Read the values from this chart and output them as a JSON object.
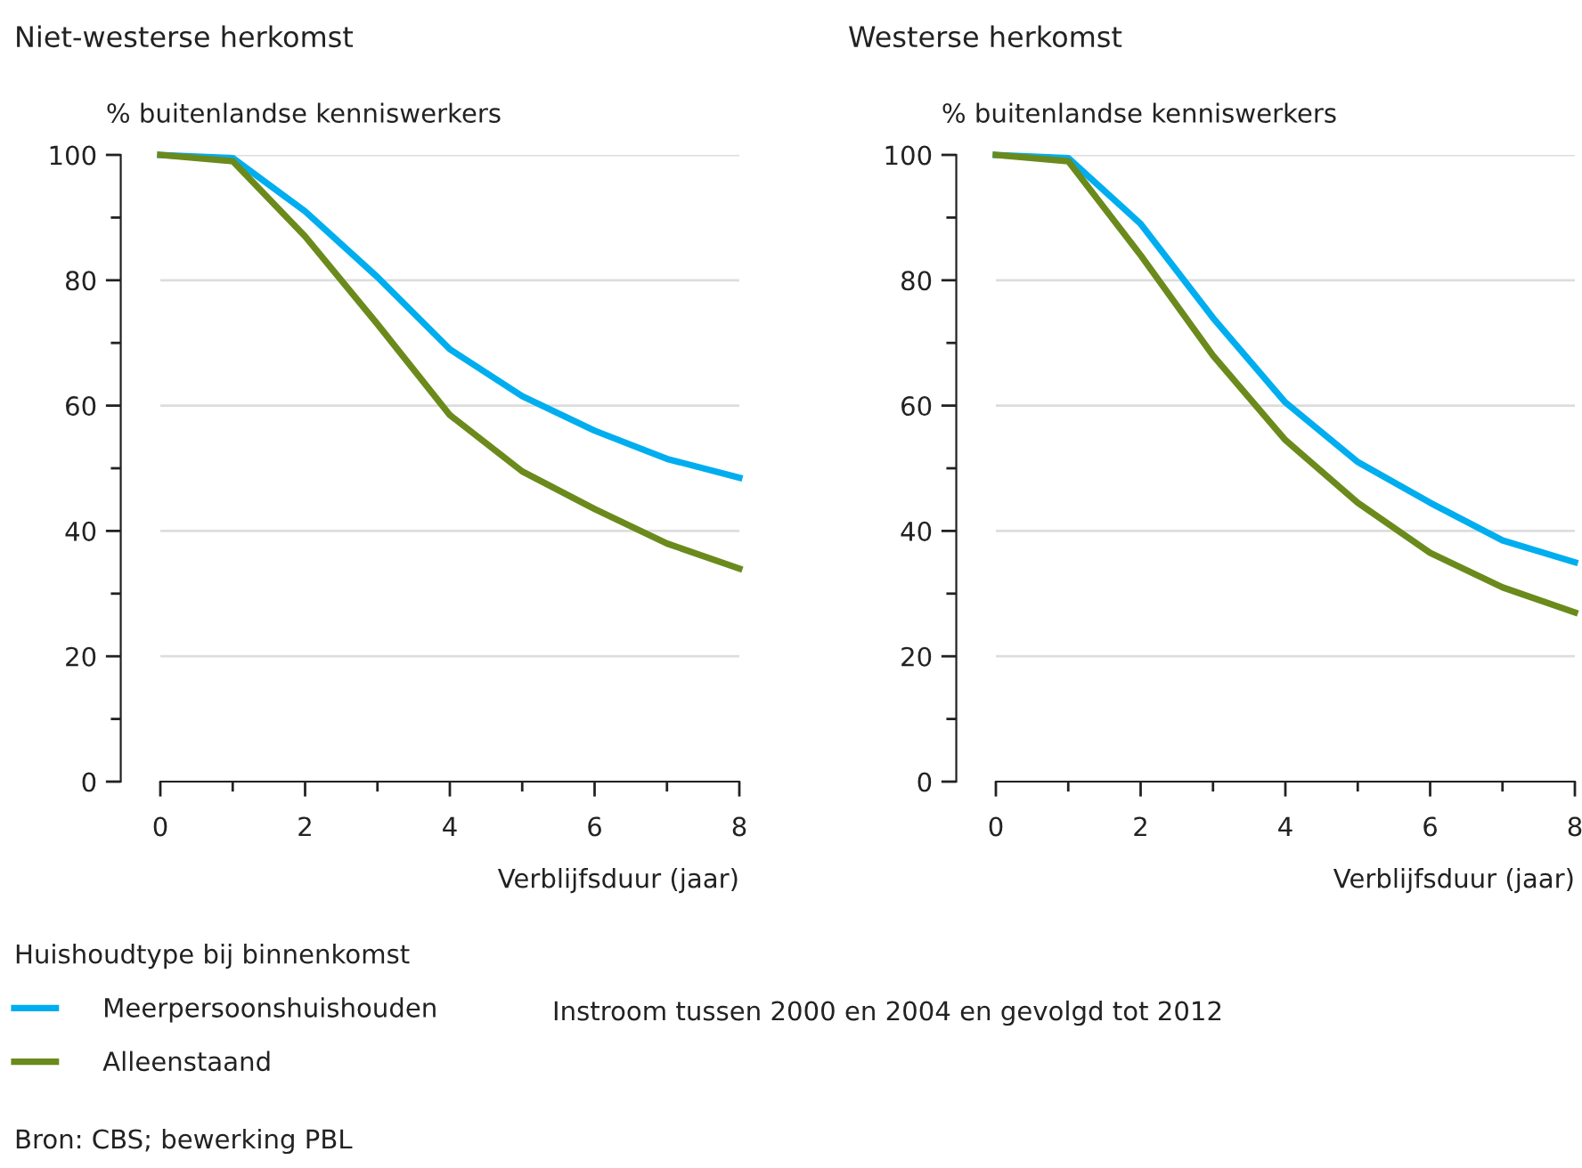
{
  "chart_data": [
    {
      "type": "line",
      "title": "Niet-westerse herkomst",
      "ylabel": "% buitenlandse kenniswerkers",
      "xlabel": "Verblijfsduur (jaar)",
      "x": [
        0,
        1,
        2,
        3,
        4,
        5,
        6,
        7,
        8
      ],
      "series": [
        {
          "name": "Meerpersoonshuishouden",
          "color": "#00aeef",
          "values": [
            100,
            99.5,
            91,
            80.5,
            69,
            61.5,
            56,
            51.5,
            48.5
          ]
        },
        {
          "name": "Alleenstaand",
          "color": "#6b8a1c",
          "values": [
            100,
            99,
            87,
            73,
            58.5,
            49.5,
            43.5,
            38,
            34
          ]
        }
      ],
      "xlim": [
        0,
        8
      ],
      "xticks": [
        0,
        2,
        4,
        6,
        8
      ],
      "ylim": [
        0,
        100
      ],
      "yticks": [
        0,
        20,
        40,
        60,
        80,
        100
      ],
      "grid": "y",
      "legend": "bottom",
      "legend_title": "Huishoudtype bij binnenkomst",
      "annotations": [
        "Instroom tussen 2000 en 2004 en gevolgd tot 2012",
        "Bron: CBS; bewerking PBL"
      ]
    },
    {
      "type": "line",
      "title": "Westerse herkomst",
      "ylabel": "% buitenlandse kenniswerkers",
      "xlabel": "Verblijfsduur (jaar)",
      "x": [
        0,
        1,
        2,
        3,
        4,
        5,
        6,
        7,
        8
      ],
      "series": [
        {
          "name": "Meerpersoonshuishouden",
          "color": "#00aeef",
          "values": [
            100,
            99.5,
            89,
            74,
            60.5,
            51,
            44.5,
            38.5,
            35
          ]
        },
        {
          "name": "Alleenstaand",
          "color": "#6b8a1c",
          "values": [
            100,
            99,
            84,
            68,
            54.5,
            44.5,
            36.5,
            31,
            27
          ]
        }
      ],
      "xlim": [
        0,
        8
      ],
      "xticks": [
        0,
        2,
        4,
        6,
        8
      ],
      "ylim": [
        0,
        100
      ],
      "yticks": [
        0,
        20,
        40,
        60,
        80,
        100
      ],
      "grid": "y"
    }
  ]
}
